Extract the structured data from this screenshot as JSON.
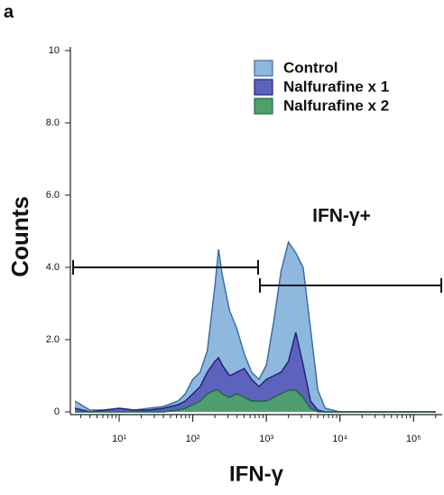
{
  "chart_data": {
    "type": "area",
    "panel_label": "a",
    "xlabel": "IFN-γ",
    "ylabel": "Counts",
    "log_x": true,
    "legend": "upper right",
    "xlim": [
      2.3,
      245000
    ],
    "xticks": [
      {
        "value": 10,
        "label": "10¹"
      },
      {
        "value": 100,
        "label": "10²"
      },
      {
        "value": 1000,
        "label": "10³"
      },
      {
        "value": 10000,
        "label": "10⁴"
      },
      {
        "value": 100000,
        "label": "10⁵"
      }
    ],
    "ylim": [
      0,
      10
    ],
    "yticks": [
      0,
      {
        "value": 2,
        "label": "2.0"
      },
      {
        "value": 4,
        "label": "4.0"
      },
      {
        "value": 6,
        "label": "6.0"
      },
      {
        "value": 8,
        "label": "8.0"
      },
      10
    ],
    "x": [
      2.5,
      4,
      6.3,
      10,
      16,
      25,
      40,
      63,
      79,
      100,
      126,
      158,
      200,
      224,
      251,
      316,
      398,
      501,
      631,
      794,
      1000,
      1259,
      1585,
      1995,
      2512,
      3162,
      3981,
      5012,
      6310,
      10000,
      31623,
      100000,
      200000
    ],
    "series": [
      {
        "name": "Control",
        "color": "#8fb8de",
        "edge": "#3b6ea8",
        "values": [
          0.3,
          0.05,
          0.05,
          0.1,
          0.05,
          0.1,
          0.15,
          0.3,
          0.5,
          0.9,
          1.1,
          1.7,
          3.5,
          4.5,
          3.8,
          2.8,
          2.3,
          1.6,
          1.1,
          0.9,
          1.3,
          2.5,
          3.9,
          4.7,
          4.4,
          4.0,
          2.3,
          0.6,
          0.1,
          0,
          0,
          0,
          0
        ]
      },
      {
        "name": "Nalfurafine x 1",
        "color": "#5d62bd",
        "edge": "#21237c",
        "values": [
          0.1,
          0,
          0.05,
          0.1,
          0.05,
          0.05,
          0.1,
          0.2,
          0.3,
          0.5,
          0.7,
          1.1,
          1.4,
          1.5,
          1.3,
          1.0,
          1.1,
          1.2,
          0.9,
          0.7,
          0.9,
          1.0,
          1.1,
          1.4,
          2.2,
          1.3,
          0.3,
          0.05,
          0,
          0,
          0,
          0,
          0
        ]
      },
      {
        "name": "Nalfurafine x 2",
        "color": "#4f9f6e",
        "edge": "#1c6a3b",
        "values": [
          0,
          0,
          0,
          0,
          0,
          0,
          0,
          0.05,
          0.1,
          0.2,
          0.3,
          0.5,
          0.6,
          0.6,
          0.5,
          0.4,
          0.5,
          0.4,
          0.3,
          0.3,
          0.3,
          0.4,
          0.5,
          0.6,
          0.6,
          0.4,
          0.1,
          0,
          0,
          0,
          0,
          0,
          0
        ]
      }
    ],
    "gates": [
      {
        "x": [
          2.3,
          794
        ],
        "y": 4
      },
      {
        "x": [
          794,
          245000
        ],
        "y": 3.5,
        "label": "IFN-γ+"
      }
    ]
  }
}
